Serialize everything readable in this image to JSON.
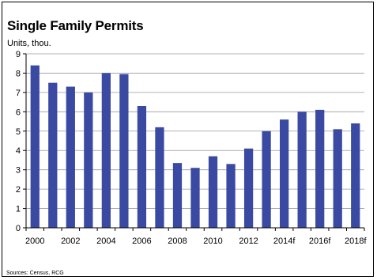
{
  "title": "Single Family Permits",
  "units_label": "Units, thou.",
  "source": "Sources: Census, RCG",
  "colors": {
    "bar": "#3a4aa2",
    "grid": "#9a9a9a",
    "axis": "#000000"
  },
  "chart_data": {
    "type": "bar",
    "title": "Single Family Permits",
    "ylabel": "Units, thou.",
    "xlabel": "",
    "ylim": [
      0,
      9
    ],
    "yticks": [
      0,
      1,
      2,
      3,
      4,
      5,
      6,
      7,
      8,
      9
    ],
    "grid": true,
    "categories": [
      "2000",
      "2001",
      "2002",
      "2003",
      "2004",
      "2005",
      "2006",
      "2007",
      "2008",
      "2009",
      "2010",
      "2011",
      "2012",
      "2013",
      "2014f",
      "2015f",
      "2016f",
      "2017f",
      "2018f"
    ],
    "xtick_labels": [
      "2000",
      "",
      "2002",
      "",
      "2004",
      "",
      "2006",
      "",
      "2008",
      "",
      "2010",
      "",
      "2012",
      "",
      "2014f",
      "",
      "2016f",
      "",
      "2018f"
    ],
    "values": [
      8.4,
      7.5,
      7.3,
      7.0,
      8.0,
      7.95,
      6.3,
      5.2,
      3.35,
      3.1,
      3.7,
      3.3,
      4.1,
      5.0,
      5.6,
      6.0,
      6.1,
      5.1,
      5.4
    ]
  }
}
